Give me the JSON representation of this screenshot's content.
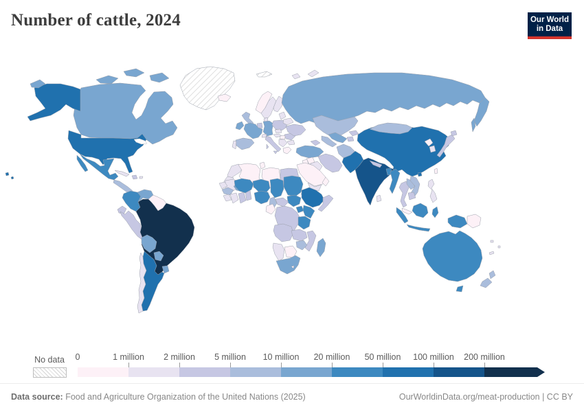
{
  "header": {
    "title": "Number of cattle, 2024",
    "logo": {
      "line1": "Our World",
      "line2": "in Data"
    }
  },
  "chart_data": {
    "type": "choropleth-map",
    "title": "Number of cattle, 2024",
    "year": 2024,
    "metric": "Number of cattle",
    "legend": {
      "no_data_label": "No data",
      "tick_labels": [
        "0",
        "1 million",
        "2 million",
        "5 million",
        "10 million",
        "20 million",
        "50 million",
        "100 million",
        "200 million"
      ],
      "bin_ranges": [
        "0-1 million",
        "1-2 million",
        "2-5 million",
        "5-10 million",
        "10-20 million",
        "20-50 million",
        "50-100 million",
        "100-200 million",
        "200+ million"
      ],
      "bin_colors": [
        "#fdf1f7",
        "#e8e3f1",
        "#c6c7e3",
        "#aabddc",
        "#79a6d0",
        "#3d89c0",
        "#2071ae",
        "#15548a",
        "#12304d"
      ]
    },
    "map_bins": {
      "canada": 4,
      "usa": 6,
      "mexico": 5,
      "central-america": 3,
      "cuba": 1,
      "hispaniola": 2,
      "caribbean": 1,
      "greenland": "no_data",
      "svalbard": "no_data",
      "colombia": 5,
      "venezuela": 4,
      "guyanas": 0,
      "ecuador": 2,
      "peru": 2,
      "brazil": 8,
      "bolivia": 4,
      "paraguay": 4,
      "uruguay": 4,
      "argentina": 6,
      "chile": 1,
      "iceland": 0,
      "norway": 0,
      "sweden": 1,
      "finland": 1,
      "denmark": 1,
      "uk": 3,
      "ireland": 4,
      "benelux": 2,
      "germany": 4,
      "poland": 2,
      "france": 4,
      "spain": 3,
      "portugal": 1,
      "italy": 2,
      "switzerland": 1,
      "czechia": 1,
      "austria": 1,
      "hungary": 0,
      "balkans": 1,
      "greece": 0,
      "romania": 2,
      "bulgaria": 1,
      "baltics": 1,
      "belarus": 1,
      "ukraine": 2,
      "russia": 4,
      "arctic-islands": 1,
      "kazakhstan": 3,
      "uzbekistan": 4,
      "turkmenistan": 3,
      "kyrgyzstan": 2,
      "tajikistan": 2,
      "caucasus": 2,
      "turkey": 4,
      "syria": 0,
      "iraq": 1,
      "iran": 2,
      "afghanistan": 3,
      "pakistan": 6,
      "india": 7,
      "nepal": 2,
      "bangladesh": 5,
      "sri-lanka": 1,
      "myanmar": 5,
      "thailand": 2,
      "laos": 3,
      "vietnam": 3,
      "cambodia": 2,
      "malaysia": 0,
      "philippines": 1,
      "taiwan": 0,
      "china": 6,
      "mongolia": 3,
      "north-korea": 0,
      "south-korea": 1,
      "japan": 2,
      "indonesia": 5,
      "papua-new-guinea": 0,
      "australia": 5,
      "new-zealand": 3,
      "pacific-islands": 1,
      "saudi-arabia": 0,
      "yemen": 1,
      "oman": 0,
      "jordan-israel": 0,
      "morocco": 1,
      "western-sahara": 1,
      "algeria": 0,
      "tunisia": 0,
      "libya": 0,
      "egypt": 2,
      "mauritania": 1,
      "senegal": 1,
      "guinea": 3,
      "sierra-leone-liberia": 1,
      "ivory-coast": 1,
      "ghana": 2,
      "togo-benin": 2,
      "burkina-faso": 4,
      "mali": 5,
      "niger": 5,
      "nigeria": 5,
      "chad": 5,
      "sudan": 5,
      "eritrea": 2,
      "ethiopia": 6,
      "somalia": 2,
      "south-sudan": 5,
      "central-african-republic": 2,
      "cameroon": 3,
      "uganda": 5,
      "kenya": 5,
      "drc": 2,
      "congo-gabon": 0,
      "tanzania": 5,
      "angola": 2,
      "zambia": 2,
      "malawi-mozambique": 2,
      "zimbabwe": 3,
      "botswana": 0,
      "namibia": 1,
      "south-africa": 4,
      "lesotho": 0,
      "madagascar": 4
    }
  },
  "footer": {
    "source_label": "Data source:",
    "source_text": " Food and Agriculture Organization of the United Nations (2025)",
    "credit": "OurWorldinData.org/meat-production | CC BY"
  }
}
